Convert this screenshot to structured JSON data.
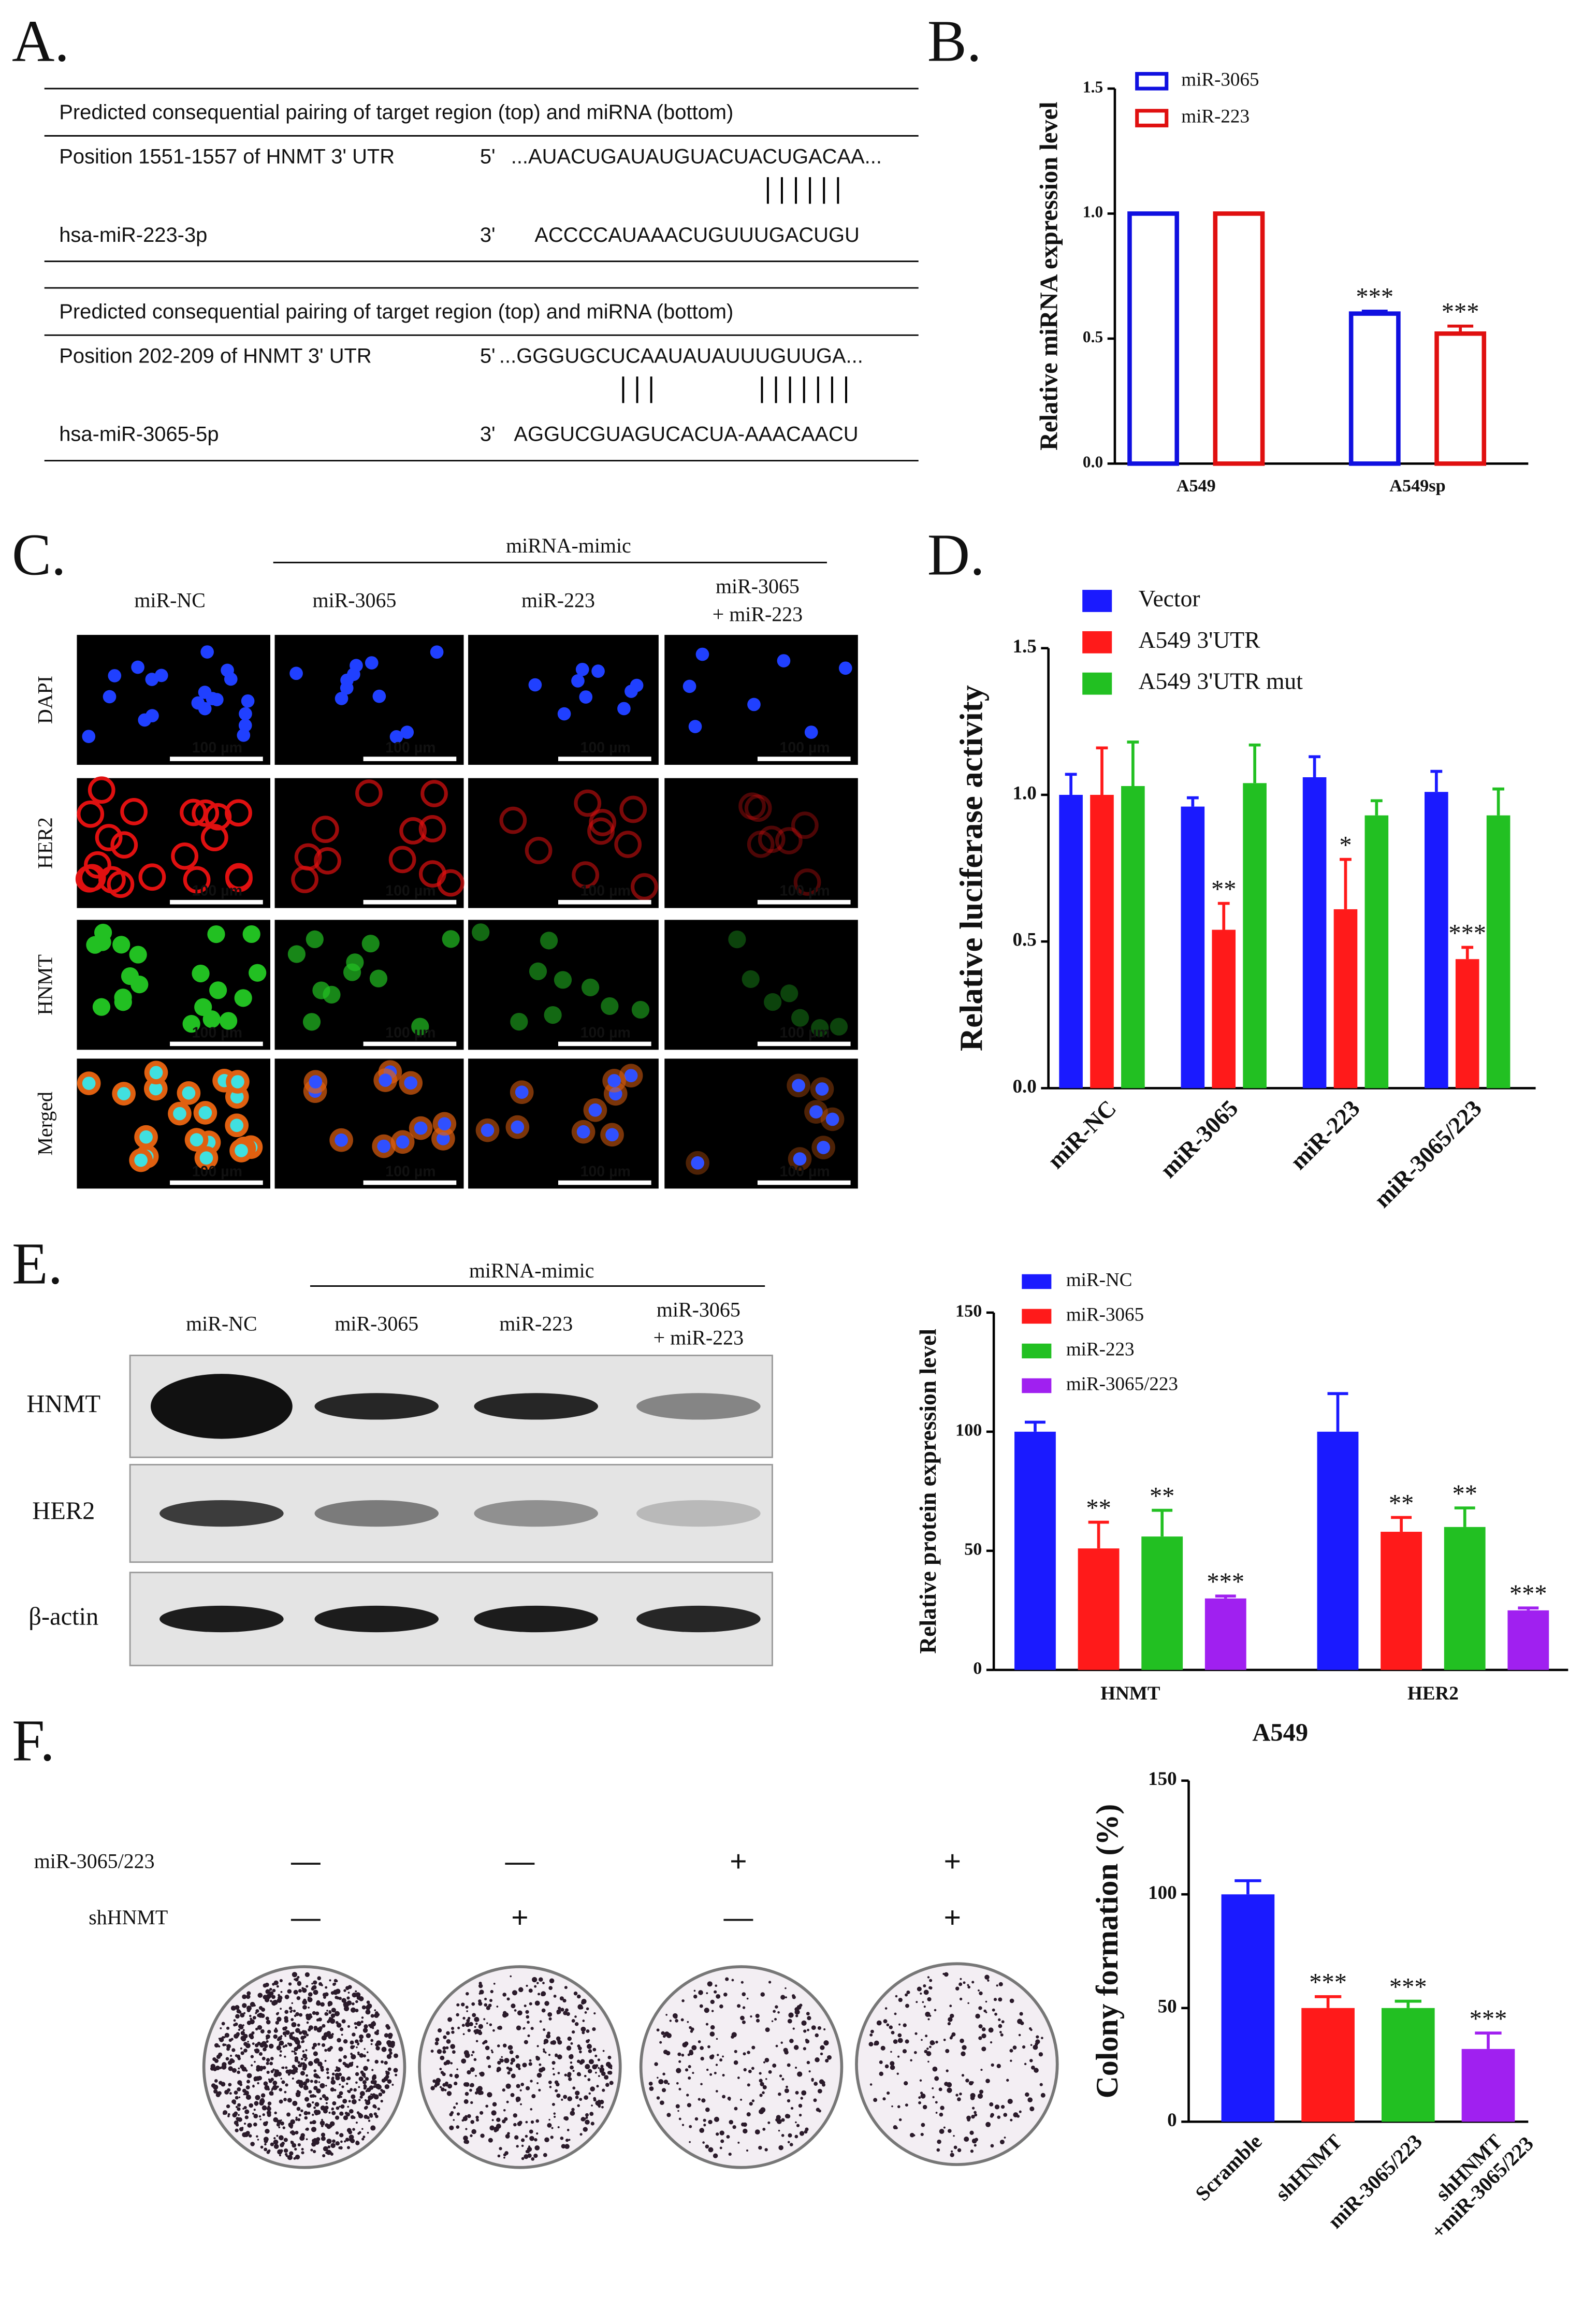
{
  "panel_labels": [
    "A.",
    "B.",
    "C.",
    "D.",
    "E.",
    "F."
  ],
  "panel_a": {
    "blocks": [
      {
        "header": "Predicted consequential pairing of target region (top) and miRNA (bottom)",
        "target_label": "Position 1551-1557 of HNMT 3' UTR",
        "target_end": "5'",
        "target_seq": "...AUACUGAUAUGUACUACUGACAA...",
        "mirna_label": "hsa-miR-223-3p",
        "mirna_end": "3'",
        "mirna_seq": "ACCCCAUAAACUGUUUGACUGU"
      },
      {
        "header": "Predicted consequential pairing of target region (top) and miRNA (bottom)",
        "target_label": "Position 202-209 of HNMT 3' UTR",
        "target_end": "5'",
        "target_seq": "...GGGUGCUCAAUAUAUUUGUUGA...",
        "mirna_label": "hsa-miR-3065-5p",
        "mirna_end": "3'",
        "mirna_seq": "AGGUCGUAGUCACUA-AAACAACU"
      }
    ]
  },
  "microscopy": {
    "header": "miRNA-mimic",
    "columns": [
      "miR-NC",
      "miR-3065",
      "miR-223",
      [
        "miR-3065",
        "+ miR-223"
      ]
    ],
    "rows": [
      "DAPI",
      "HER2",
      "HNMT",
      "Merged"
    ],
    "scale_label": "100 µm"
  },
  "western": {
    "header": "miRNA-mimic",
    "columns": [
      "miR-NC",
      "miR-3065",
      "miR-223",
      [
        "miR-3065",
        "+ miR-223"
      ]
    ],
    "rows": [
      "HNMT",
      "HER2",
      "β-actin"
    ]
  },
  "colony": {
    "rows": [
      {
        "label": "miR-3065/223",
        "signs": [
          "—",
          "—",
          "+",
          "+"
        ]
      },
      {
        "label": "shHNMT",
        "signs": [
          "—",
          "+",
          "—",
          "+"
        ]
      }
    ]
  },
  "chart_data": [
    {
      "type": "bar",
      "style": "outline",
      "y_label": "Relative miRNA expression level",
      "categories": [
        "A549",
        "A549sp"
      ],
      "series": [
        {
          "name": "miR-3065",
          "color": "#1010e0",
          "values": [
            1.0,
            0.6
          ],
          "errors": [
            0,
            0.01
          ],
          "labels": [
            null,
            "***"
          ]
        },
        {
          "name": "miR-223",
          "color": "#e01010",
          "values": [
            1.0,
            0.52
          ],
          "errors": [
            0,
            0.03
          ],
          "labels": [
            null,
            "***"
          ]
        }
      ],
      "ylim": [
        0,
        1.5
      ],
      "yticks": [
        {
          "value": 0,
          "label": "0.0"
        },
        {
          "value": 0.5,
          "label": "0.5"
        },
        {
          "value": 1,
          "label": "1.0"
        },
        {
          "value": 1.5,
          "label": "1.5"
        }
      ]
    },
    {
      "type": "bar",
      "y_label": "Relative luciferase activity",
      "categories": [
        "miR-NC",
        "miR-3065",
        "miR-223",
        "miR-3065/223"
      ],
      "series": [
        {
          "name": "Vector",
          "color": "#1a1aff",
          "values": [
            1.0,
            0.96,
            1.06,
            1.01
          ],
          "errors": [
            0.07,
            0.03,
            0.07,
            0.07
          ]
        },
        {
          "name": "A549 3'UTR",
          "color": "#ff1a1a",
          "values": [
            1.0,
            0.54,
            0.61,
            0.44
          ],
          "errors": [
            0.16,
            0.09,
            0.17,
            0.04
          ],
          "labels": [
            null,
            "**",
            "*",
            "***"
          ]
        },
        {
          "name": "A549 3'UTR mut",
          "color": "#22c022",
          "values": [
            1.03,
            1.04,
            0.93,
            0.93
          ],
          "errors": [
            0.15,
            0.13,
            0.05,
            0.09
          ]
        }
      ],
      "ylim": [
        0,
        1.5
      ],
      "yticks": [
        {
          "value": 0,
          "label": "0.0"
        },
        {
          "value": 0.5,
          "label": "0.5"
        },
        {
          "value": 1,
          "label": "1.0"
        },
        {
          "value": 1.5,
          "label": "1.5"
        }
      ]
    },
    {
      "type": "bar",
      "y_label": "Relative protein expression level",
      "categories": [
        "HNMT",
        "HER2"
      ],
      "series": [
        {
          "name": "miR-NC",
          "color": "#1a1aff",
          "values": [
            100,
            100
          ],
          "errors": [
            4,
            16
          ]
        },
        {
          "name": "miR-3065",
          "color": "#ff1a1a",
          "values": [
            51,
            58
          ],
          "errors": [
            11,
            6
          ],
          "labels": [
            "**",
            "**"
          ]
        },
        {
          "name": "miR-223",
          "color": "#22c022",
          "values": [
            56,
            60
          ],
          "errors": [
            11,
            8
          ],
          "labels": [
            "**",
            "**"
          ]
        },
        {
          "name": "miR-3065/223",
          "color": "#a020f0",
          "values": [
            30,
            25
          ],
          "errors": [
            1,
            1
          ],
          "labels": [
            "***",
            "***"
          ]
        }
      ],
      "ylim": [
        0,
        150
      ],
      "yticks": [
        0,
        50,
        100,
        150
      ]
    },
    {
      "type": "bar",
      "title": "A549",
      "y_label": "Colony formation (%)",
      "categories": [
        "Scramble",
        "shHNMT",
        "miR-3065/223",
        [
          "shHNMT",
          "+miR-3065/223"
        ]
      ],
      "values": [
        100,
        50,
        50,
        32
      ],
      "errors": [
        6,
        5,
        3,
        7
      ],
      "colors": [
        "#1a1aff",
        "#ff1a1a",
        "#22c022",
        "#a020f0"
      ],
      "labels": [
        null,
        "***",
        "***",
        "***"
      ],
      "ylim": [
        0,
        150
      ],
      "yticks": [
        0,
        50,
        100,
        150
      ]
    }
  ]
}
